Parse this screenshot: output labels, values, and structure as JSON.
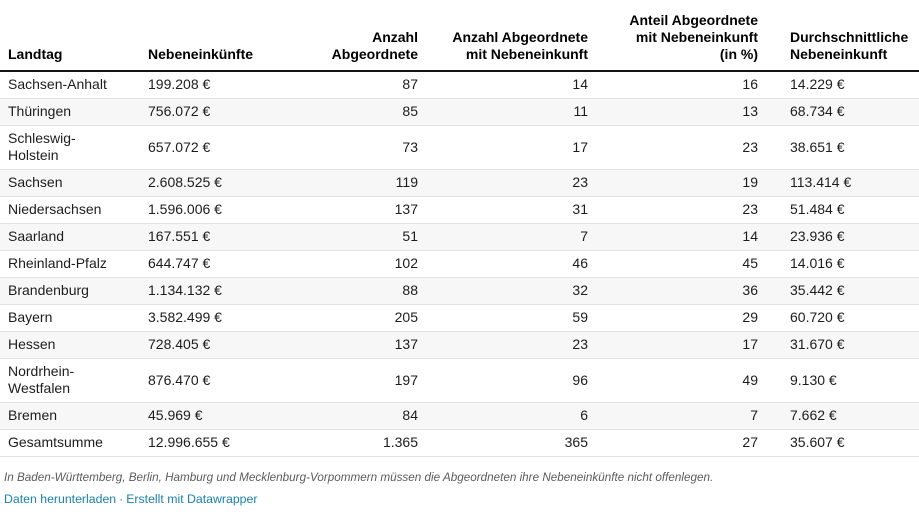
{
  "chart_data": {
    "type": "table",
    "columns": [
      "Landtag",
      "Nebeneinkünfte",
      "Anzahl\nAbgeordnete",
      "Anzahl Abgeordnete\nmit Nebeneinkunft",
      "Anteil Abgeordnete\nmit Nebeneinkunft\n(in %)",
      "Durchschnittliche\nNebeneinkunft"
    ],
    "rows": [
      [
        "Sachsen-Anhalt",
        "199.208 €",
        "87",
        "14",
        "16",
        "14.229 €"
      ],
      [
        "Thüringen",
        "756.072 €",
        "85",
        "11",
        "13",
        "68.734 €"
      ],
      [
        "Schleswig-Holstein",
        "657.072 €",
        "73",
        "17",
        "23",
        "38.651 €"
      ],
      [
        "Sachsen",
        "2.608.525 €",
        "119",
        "23",
        "19",
        "113.414 €"
      ],
      [
        "Niedersachsen",
        "1.596.006 €",
        "137",
        "31",
        "23",
        "51.484 €"
      ],
      [
        "Saarland",
        "167.551 €",
        "51",
        "7",
        "14",
        "23.936 €"
      ],
      [
        "Rheinland-Pfalz",
        "644.747 €",
        "102",
        "46",
        "45",
        "14.016 €"
      ],
      [
        "Brandenburg",
        "1.134.132 €",
        "88",
        "32",
        "36",
        "35.442 €"
      ],
      [
        "Bayern",
        "3.582.499 €",
        "205",
        "59",
        "29",
        "60.720 €"
      ],
      [
        "Hessen",
        "728.405 €",
        "137",
        "23",
        "17",
        "31.670 €"
      ],
      [
        "Nordrhein-Westfalen",
        "876.470 €",
        "197",
        "96",
        "49",
        "9.130 €"
      ],
      [
        "Bremen",
        "45.969 €",
        "84",
        "6",
        "7",
        "7.662 €"
      ],
      [
        "Gesamtsumme",
        "12.996.655 €",
        "1.365",
        "365",
        "27",
        "35.607 €"
      ]
    ],
    "legend_position": "none",
    "grid": "horizontal-row-borders"
  },
  "footer": {
    "note": "In Baden-Württemberg, Berlin, Hamburg und Mecklenburg-Vorpommern müssen die Abgeordneten ihre Nebeneinkünfte nicht offenlegen.",
    "links": [
      {
        "label": "Daten herunterladen"
      },
      {
        "label": "Erstellt mit Datawrapper"
      }
    ],
    "separator": "·"
  },
  "colors": {
    "link": "#1a81ad",
    "stripe": "#f7f7f7",
    "rule": "#141414",
    "row_border": "#e3e3e3"
  }
}
